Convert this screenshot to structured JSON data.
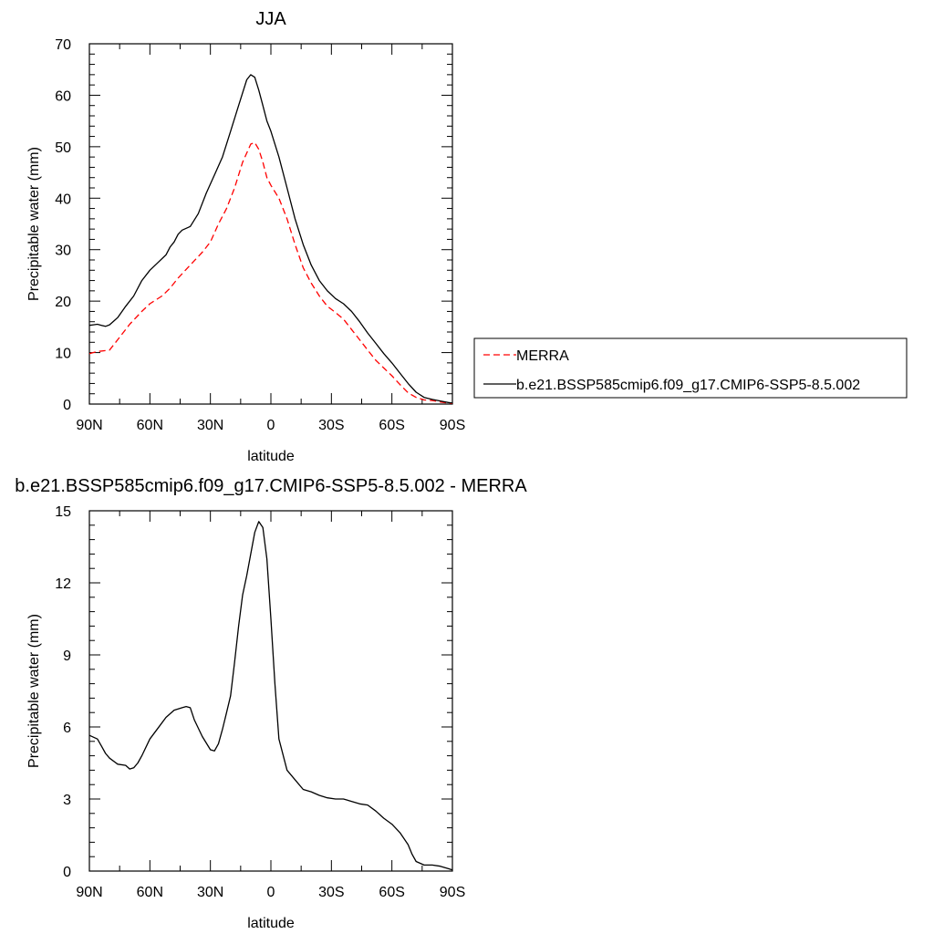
{
  "colors": {
    "merra": "#ff0000",
    "model": "#000000",
    "axis": "#000000",
    "legend_border": "#000000"
  },
  "legend": {
    "placement": "right of top panel",
    "entries": [
      {
        "label": "MERRA",
        "color": "#ff0000",
        "dash": "dashed"
      },
      {
        "label": "b.e21.BSSP585cmip6.f09_g17.CMIP6-SSP5-8.5.002",
        "color": "#000000",
        "dash": "solid"
      }
    ]
  },
  "chart_data": [
    {
      "type": "line",
      "title": "JJA",
      "xlabel": "latitude",
      "ylabel": "Precipitable water (mm)",
      "xlim": [
        90,
        -90
      ],
      "ylim": [
        0,
        70
      ],
      "xticks": [
        {
          "value": 90,
          "label": "90N"
        },
        {
          "value": 60,
          "label": "60N"
        },
        {
          "value": 30,
          "label": "30N"
        },
        {
          "value": 0,
          "label": "0"
        },
        {
          "value": -30,
          "label": "30S"
        },
        {
          "value": -60,
          "label": "60S"
        },
        {
          "value": -90,
          "label": "90S"
        }
      ],
      "yticks": [
        {
          "value": 0,
          "label": "0"
        },
        {
          "value": 10,
          "label": "10"
        },
        {
          "value": 20,
          "label": "20"
        },
        {
          "value": 30,
          "label": "30"
        },
        {
          "value": 40,
          "label": "40"
        },
        {
          "value": 50,
          "label": "50"
        },
        {
          "value": 60,
          "label": "60"
        },
        {
          "value": 70,
          "label": "70"
        }
      ],
      "grid": false,
      "series": [
        {
          "name": "MERRA",
          "color": "#ff0000",
          "dash": "dashed",
          "x": [
            90,
            86,
            80,
            76,
            70,
            64,
            60,
            54,
            50,
            46,
            40,
            34,
            30,
            26,
            22,
            18,
            14,
            10,
            8,
            6,
            4,
            2,
            0,
            -4,
            -8,
            -12,
            -16,
            -20,
            -24,
            -28,
            -32,
            -36,
            -40,
            -44,
            -48,
            -52,
            -56,
            -60,
            -64,
            -68,
            -72,
            -76,
            -80,
            -84,
            -88,
            -90
          ],
          "y": [
            9.8,
            10.2,
            10.5,
            12.5,
            15.5,
            18,
            19.5,
            21,
            22.5,
            24.5,
            27,
            29.5,
            31.5,
            35,
            38,
            42,
            47,
            50.5,
            50.8,
            49.5,
            47,
            44,
            42.5,
            40,
            36,
            31,
            26.5,
            23.5,
            21,
            19,
            17.8,
            16.5,
            14.5,
            12.5,
            10.5,
            8.5,
            7,
            5.5,
            3.8,
            2.2,
            1.3,
            0.8,
            0.7,
            0.4,
            0.2,
            0.1
          ]
        },
        {
          "name": "b.e21.BSSP585cmip6.f09_g17.CMIP6-SSP5-8.5.002",
          "color": "#000000",
          "dash": "solid",
          "x": [
            90,
            88,
            86,
            84,
            82,
            80,
            76,
            72,
            68,
            64,
            60,
            56,
            52,
            50,
            48,
            46,
            44,
            40,
            36,
            32,
            28,
            24,
            20,
            16,
            12,
            10,
            8,
            6,
            4,
            2,
            0,
            -4,
            -8,
            -12,
            -16,
            -20,
            -24,
            -28,
            -32,
            -36,
            -40,
            -44,
            -48,
            -52,
            -56,
            -60,
            -64,
            -68,
            -72,
            -76,
            -80,
            -84,
            -88,
            -90
          ],
          "y": [
            15.3,
            15.4,
            15.5,
            15.3,
            15.1,
            15.4,
            16.8,
            19,
            21,
            24,
            26,
            27.5,
            29,
            30.5,
            31.5,
            33,
            33.8,
            34.5,
            37,
            41,
            44.5,
            48,
            53,
            58,
            63,
            64,
            63.5,
            61,
            58,
            55,
            53,
            48,
            42,
            36,
            31,
            27,
            24,
            22,
            20.5,
            19.5,
            18,
            16,
            13.8,
            11.8,
            9.8,
            8,
            6,
            4,
            2.3,
            1.3,
            0.9,
            0.6,
            0.3,
            0.2
          ]
        }
      ]
    },
    {
      "type": "line",
      "title": "b.e21.BSSP585cmip6.f09_g17.CMIP6-SSP5-8.5.002 - MERRA",
      "xlabel": "latitude",
      "ylabel": "Precipitable water (mm)",
      "xlim": [
        90,
        -90
      ],
      "ylim": [
        0,
        15
      ],
      "xticks": [
        {
          "value": 90,
          "label": "90N"
        },
        {
          "value": 60,
          "label": "60N"
        },
        {
          "value": 30,
          "label": "30N"
        },
        {
          "value": 0,
          "label": "0"
        },
        {
          "value": -30,
          "label": "30S"
        },
        {
          "value": -60,
          "label": "60S"
        },
        {
          "value": -90,
          "label": "90S"
        }
      ],
      "yticks": [
        {
          "value": 0,
          "label": "0"
        },
        {
          "value": 3,
          "label": "3"
        },
        {
          "value": 6,
          "label": "6"
        },
        {
          "value": 9,
          "label": "9"
        },
        {
          "value": 12,
          "label": "12"
        },
        {
          "value": 15,
          "label": "15"
        }
      ],
      "grid": false,
      "series": [
        {
          "color": "#000000",
          "dash": "solid",
          "x": [
            90,
            86,
            84,
            82,
            80,
            76,
            72,
            70,
            68,
            66,
            64,
            60,
            56,
            52,
            48,
            44,
            42,
            40,
            38,
            34,
            30,
            28,
            26,
            24,
            22,
            20,
            18,
            16,
            14,
            12,
            10,
            8,
            6,
            4,
            2,
            0,
            -2,
            -4,
            -8,
            -12,
            -16,
            -20,
            -24,
            -28,
            -32,
            -36,
            -40,
            -44,
            -48,
            -52,
            -56,
            -60,
            -64,
            -68,
            -70,
            -72,
            -76,
            -80,
            -84,
            -88,
            -90
          ],
          "y": [
            5.65,
            5.5,
            5.2,
            4.9,
            4.7,
            4.45,
            4.4,
            4.25,
            4.3,
            4.5,
            4.8,
            5.5,
            5.95,
            6.4,
            6.7,
            6.8,
            6.85,
            6.8,
            6.3,
            5.6,
            5.05,
            5.0,
            5.3,
            5.9,
            6.6,
            7.3,
            8.7,
            10.2,
            11.5,
            12.3,
            13.2,
            14.1,
            14.55,
            14.3,
            13,
            10.5,
            7.8,
            5.5,
            4.2,
            3.8,
            3.4,
            3.3,
            3.15,
            3.05,
            3.0,
            3.0,
            2.9,
            2.8,
            2.75,
            2.5,
            2.2,
            1.95,
            1.6,
            1.1,
            0.7,
            0.4,
            0.25,
            0.25,
            0.2,
            0.1,
            0.05
          ]
        }
      ]
    }
  ]
}
